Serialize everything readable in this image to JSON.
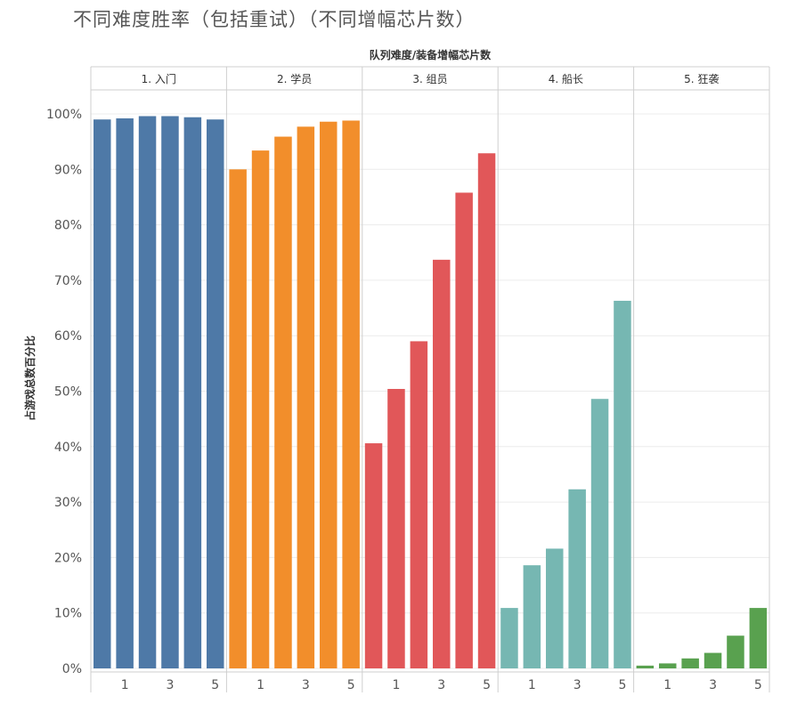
{
  "chart_data": {
    "type": "bar",
    "title": "不同难度胜率（包括重试）（不同增幅芯片数）",
    "column_header": "队列难度/装备增幅芯片数",
    "ylabel": "占游戏总数百分比",
    "ylim": [
      0,
      100
    ],
    "y_ticks": [
      0,
      10,
      20,
      30,
      40,
      50,
      60,
      70,
      80,
      90,
      100
    ],
    "y_tick_labels": [
      "0%",
      "10%",
      "20%",
      "30%",
      "40%",
      "50%",
      "60%",
      "70%",
      "80%",
      "90%",
      "100%"
    ],
    "x": [
      0,
      1,
      2,
      3,
      4,
      5
    ],
    "x_tick_labels": [
      "1",
      "3",
      "5"
    ],
    "grid": true,
    "panels": [
      {
        "label": "1. 入门",
        "color": "#4e79a7",
        "values": [
          99.0,
          99.2,
          99.6,
          99.6,
          99.4,
          99.0
        ]
      },
      {
        "label": "2. 学员",
        "color": "#f28e2b",
        "values": [
          90.0,
          93.4,
          95.9,
          97.7,
          98.6,
          98.8
        ]
      },
      {
        "label": "3. 组员",
        "color": "#e15759",
        "values": [
          40.6,
          50.4,
          59.0,
          73.7,
          85.8,
          92.9
        ]
      },
      {
        "label": "4. 船长",
        "color": "#76b7b2",
        "values": [
          10.9,
          18.6,
          21.6,
          32.3,
          48.6,
          66.3
        ]
      },
      {
        "label": "5. 狂袭",
        "color": "#59a14f",
        "values": [
          0.5,
          0.9,
          1.8,
          2.8,
          5.9,
          10.9
        ]
      }
    ]
  }
}
